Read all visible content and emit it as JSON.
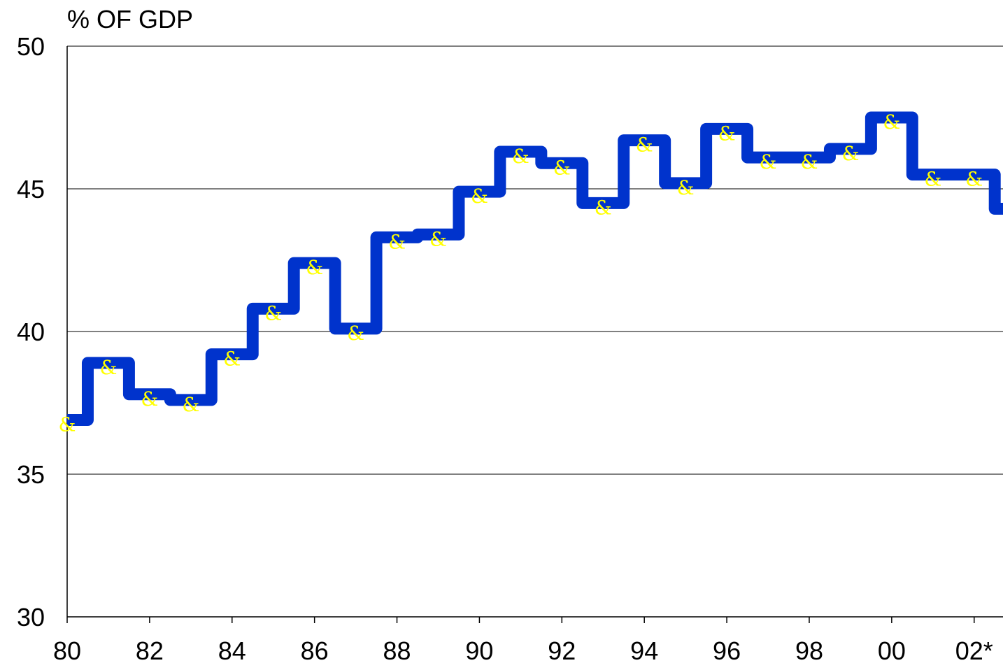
{
  "chart_data": {
    "type": "line",
    "step": true,
    "title": "",
    "ylabel": "% OF GDP",
    "xlabel": "",
    "ylim": [
      30,
      50
    ],
    "y_ticks": [
      "30",
      "35",
      "40",
      "45",
      "50"
    ],
    "xlim": [
      1980,
      2002.7
    ],
    "x_ticks": [
      {
        "value": 1980,
        "label": "80"
      },
      {
        "value": 1982,
        "label": "82"
      },
      {
        "value": 1984,
        "label": "84"
      },
      {
        "value": 1986,
        "label": "86"
      },
      {
        "value": 1988,
        "label": "88"
      },
      {
        "value": 1990,
        "label": "90"
      },
      {
        "value": 1992,
        "label": "92"
      },
      {
        "value": 1994,
        "label": "94"
      },
      {
        "value": 1996,
        "label": "96"
      },
      {
        "value": 1998,
        "label": "98"
      },
      {
        "value": 2000,
        "label": "00"
      },
      {
        "value": 2002,
        "label": "02*"
      }
    ],
    "grid": "horizontal",
    "series": [
      {
        "marker": "&",
        "color": "#0033cc",
        "marker_color": "#ffff00",
        "x": [
          1980,
          1981,
          1982,
          1983,
          1984,
          1985,
          1986,
          1987,
          1988,
          1989,
          1990,
          1991,
          1992,
          1993,
          1994,
          1995,
          1996,
          1997,
          1998,
          1999,
          2000,
          2001,
          2002,
          2003
        ],
        "values": [
          36.9,
          38.9,
          37.8,
          37.6,
          39.2,
          40.8,
          42.4,
          40.1,
          43.3,
          43.4,
          44.9,
          46.3,
          45.9,
          44.5,
          46.7,
          45.2,
          47.1,
          46.1,
          46.1,
          46.4,
          47.5,
          45.5,
          45.5,
          44.3
        ]
      }
    ]
  }
}
